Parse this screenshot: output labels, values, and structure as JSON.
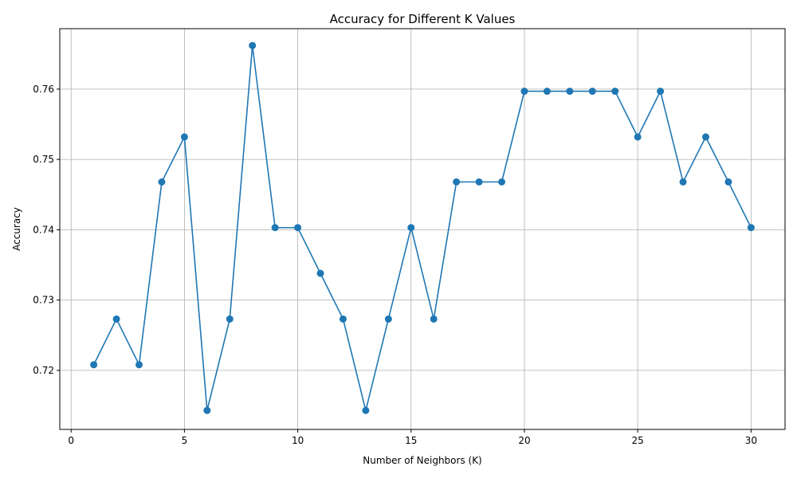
{
  "chart_data": {
    "type": "line",
    "title": "Accuracy for Different K Values",
    "xlabel": "Number of Neighbors (K)",
    "ylabel": "Accuracy",
    "xlim": [
      -0.5,
      31.5
    ],
    "ylim": [
      0.7116,
      0.7686
    ],
    "xticks": [
      0,
      5,
      10,
      15,
      20,
      25,
      30
    ],
    "xtick_labels": [
      "0",
      "5",
      "10",
      "15",
      "20",
      "25",
      "30"
    ],
    "yticks": [
      0.72,
      0.73,
      0.74,
      0.75,
      0.76
    ],
    "ytick_labels": [
      "0.72",
      "0.73",
      "0.74",
      "0.75",
      "0.76"
    ],
    "grid": true,
    "legend": "none",
    "series": [
      {
        "color": "#1f77b4",
        "marker": "circle",
        "x": [
          1,
          2,
          3,
          4,
          5,
          6,
          7,
          8,
          9,
          10,
          11,
          12,
          13,
          14,
          15,
          16,
          17,
          18,
          19,
          20,
          21,
          22,
          23,
          24,
          25,
          26,
          27,
          28,
          29,
          30
        ],
        "y": [
          0.7208,
          0.7273,
          0.7208,
          0.7468,
          0.7532,
          0.7143,
          0.7273,
          0.7662,
          0.7403,
          0.7403,
          0.7338,
          0.7273,
          0.7143,
          0.7273,
          0.7403,
          0.7273,
          0.7468,
          0.7468,
          0.7468,
          0.7597,
          0.7597,
          0.7597,
          0.7597,
          0.7597,
          0.7532,
          0.7597,
          0.7468,
          0.7532,
          0.7468,
          0.7403
        ]
      }
    ]
  }
}
